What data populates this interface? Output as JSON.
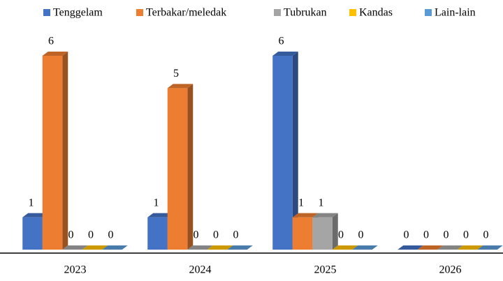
{
  "chart_data": {
    "type": "bar3d",
    "categories": [
      "2023",
      "2024",
      "2025",
      "2026"
    ],
    "series": [
      {
        "name": "Tenggelam",
        "color": "#4472c4",
        "values": [
          1,
          1,
          6,
          0
        ]
      },
      {
        "name": "Terbakar/meledak",
        "color": "#ed7d31",
        "values": [
          6,
          5,
          1,
          0
        ]
      },
      {
        "name": "Tubrukan",
        "color": "#a5a5a5",
        "values": [
          0,
          0,
          1,
          0
        ]
      },
      {
        "name": "Kandas",
        "color": "#ffc000",
        "values": [
          0,
          0,
          0,
          0
        ]
      },
      {
        "name": "Lain-lain",
        "color": "#5b9bd5",
        "values": [
          0,
          0,
          0,
          0
        ]
      }
    ],
    "legend": "top"
  }
}
